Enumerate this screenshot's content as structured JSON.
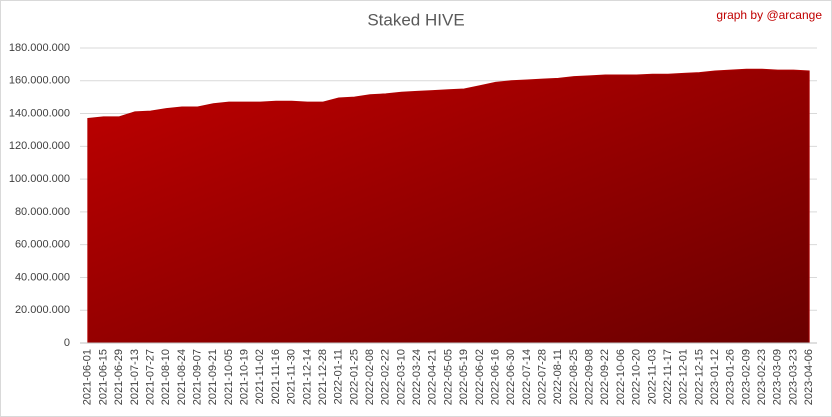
{
  "chart_data": {
    "type": "area",
    "title": "Staked HIVE",
    "annotation": "graph by @arcange",
    "categories": [
      "2021-06-01",
      "2021-06-15",
      "2021-06-29",
      "2021-07-13",
      "2021-07-27",
      "2021-08-10",
      "2021-08-24",
      "2021-09-07",
      "2021-09-21",
      "2021-10-05",
      "2021-10-19",
      "2021-11-02",
      "2021-11-16",
      "2021-11-30",
      "2021-12-14",
      "2021-12-28",
      "2022-01-11",
      "2022-01-25",
      "2022-02-08",
      "2022-02-22",
      "2022-03-10",
      "2022-03-24",
      "2022-04-21",
      "2022-05-05",
      "2022-05-19",
      "2022-06-02",
      "2022-06-16",
      "2022-06-30",
      "2022-07-14",
      "2022-07-28",
      "2022-08-11",
      "2022-08-25",
      "2022-09-08",
      "2022-09-22",
      "2022-10-06",
      "2022-10-20",
      "2022-11-03",
      "2022-11-17",
      "2022-12-01",
      "2022-12-15",
      "2023-01-12",
      "2023-01-26",
      "2023-02-09",
      "2023-02-23",
      "2023-03-09",
      "2023-03-23",
      "2023-04-06"
    ],
    "values": [
      137000000,
      138000000,
      138000000,
      141000000,
      141500000,
      143000000,
      144000000,
      144000000,
      146000000,
      147000000,
      147000000,
      147000000,
      147500000,
      147500000,
      147000000,
      147000000,
      149500000,
      150000000,
      151500000,
      152000000,
      153000000,
      153500000,
      154000000,
      154500000,
      155000000,
      157000000,
      159000000,
      160000000,
      160500000,
      161000000,
      161500000,
      162500000,
      163000000,
      163500000,
      163500000,
      163500000,
      164000000,
      164000000,
      164500000,
      165000000,
      166000000,
      166500000,
      167000000,
      167000000,
      166500000,
      166500000,
      166000000
    ],
    "color": "#b00000",
    "ylim": [
      0,
      180000000
    ],
    "yticks": [
      0,
      {
        "value": 20000000,
        "label": "20.000.000"
      },
      {
        "value": 40000000,
        "label": "40.000.000"
      },
      {
        "value": 60000000,
        "label": "60.000.000"
      },
      {
        "value": 80000000,
        "label": "80.000.000"
      },
      {
        "value": 100000000,
        "label": "100.000.000"
      },
      {
        "value": 120000000,
        "label": "120.000.000"
      },
      {
        "value": 140000000,
        "label": "140.000.000"
      },
      {
        "value": 160000000,
        "label": "160.000.000"
      },
      {
        "value": 180000000,
        "label": "180.000.000"
      }
    ],
    "grid": true
  }
}
